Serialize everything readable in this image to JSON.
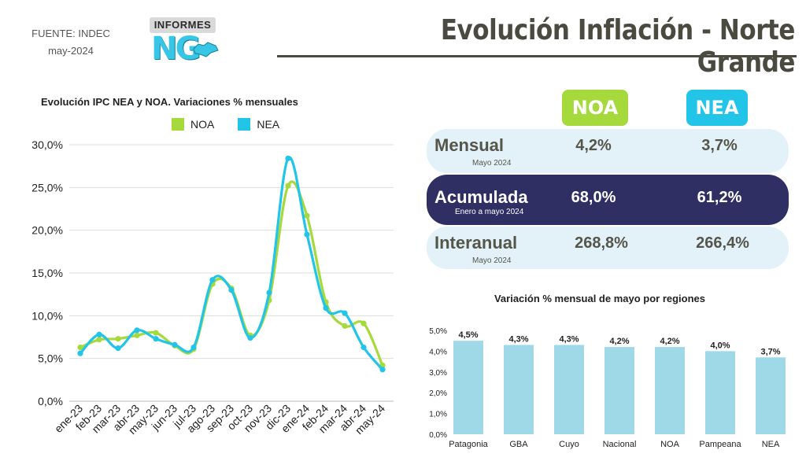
{
  "header": {
    "source_line1": "FUENTE: INDEC",
    "source_line2": "may-2024",
    "logo_tag": "INFORMES",
    "logo_mark": "NG",
    "title": "Evolución Inflación - Norte Grande"
  },
  "colors": {
    "noa": "#a6d93b",
    "nea": "#22c4e8",
    "bar": "#9fd8e6",
    "dark_row": "#2f2f63",
    "light_row": "#e2f2f8",
    "title": "#4a4a40"
  },
  "kpis": {
    "col_noa": "NOA",
    "col_nea": "NEA",
    "rows": [
      {
        "label": "Mensual",
        "sub": "Mayo 2024",
        "noa": "4,2%",
        "nea": "3,7%"
      },
      {
        "label": "Acumulada",
        "sub": "Enero a mayo 2024",
        "noa": "68,0%",
        "nea": "61,2%"
      },
      {
        "label": "Interanual",
        "sub": "Mayo 2024",
        "noa": "268,8%",
        "nea": "266,4%"
      }
    ]
  },
  "chart_data": [
    {
      "type": "line",
      "title": "Evolución IPC NEA y NOA. Variaciones % mensuales",
      "x": [
        "ene-23",
        "feb-23",
        "mar-23",
        "abr-23",
        "may-23",
        "jun-23",
        "jul-23",
        "ago-23",
        "sep-23",
        "oct-23",
        "nov-23",
        "dic-23",
        "ene-24",
        "feb-24",
        "mar-24",
        "abr-24",
        "may-24"
      ],
      "series": [
        {
          "name": "NOA",
          "values": [
            6.3,
            7.2,
            7.3,
            7.7,
            8.0,
            6.5,
            6.1,
            13.7,
            13.2,
            7.7,
            11.8,
            25.2,
            21.7,
            11.6,
            8.8,
            9.1,
            4.2
          ]
        },
        {
          "name": "NEA",
          "values": [
            5.6,
            7.8,
            6.2,
            8.3,
            7.3,
            6.6,
            6.3,
            14.2,
            13.0,
            7.4,
            12.7,
            28.4,
            19.5,
            10.9,
            10.3,
            6.3,
            3.7
          ]
        }
      ],
      "ylim": [
        0,
        30
      ],
      "yticks": [
        "0,0%",
        "5,0%",
        "10,0%",
        "15,0%",
        "20,0%",
        "25,0%",
        "30,0%"
      ],
      "grid": true,
      "legend": "top-center"
    },
    {
      "type": "bar",
      "title": "Variación % mensual de mayo por regiones",
      "categories": [
        "Patagonia",
        "GBA",
        "Cuyo",
        "Nacional",
        "NOA",
        "Pampeana",
        "NEA"
      ],
      "values": [
        4.5,
        4.3,
        4.3,
        4.2,
        4.2,
        4.0,
        3.7
      ],
      "labels": [
        "4,5%",
        "4,3%",
        "4,3%",
        "4,2%",
        "4,2%",
        "4,0%",
        "3,7%"
      ],
      "ylim": [
        0,
        5
      ],
      "yticks": [
        "0,0%",
        "1,0%",
        "2,0%",
        "3,0%",
        "4,0%",
        "5,0%"
      ],
      "grid": false
    }
  ]
}
